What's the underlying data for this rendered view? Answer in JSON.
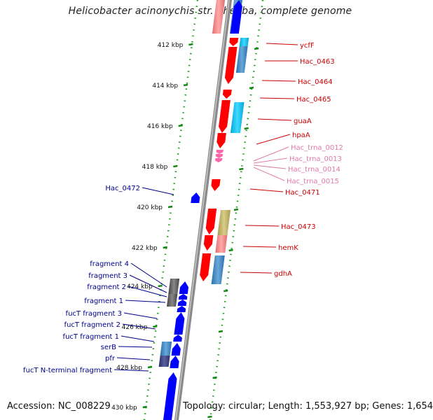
{
  "title": "Helicobacter acinonychis str. Sheeba, complete genome",
  "footer": {
    "accession": "Accession: NC_008229",
    "summary": "Topology: circular; Length: 1,553,927 bp; Genes: 1,654"
  },
  "colors": {
    "forward_label": "#cc0000",
    "reverse_label": "#00008b",
    "trna_label": "#e07aa8",
    "cds_forward": "#ff0000",
    "cds_reverse": "#0000ff",
    "trna": "#ff66aa",
    "fragment": "#555555",
    "backbone": "#888888",
    "scale_tick": "#118811"
  },
  "scale_ticks": [
    "412 kbp",
    "414 kbp",
    "416 kbp",
    "418 kbp",
    "420 kbp",
    "422 kbp",
    "424 kbp",
    "426 kbp",
    "428 kbp",
    "430 kbp"
  ],
  "forward_labels": [
    "ycfF",
    "Hac_0463",
    "Hac_0464",
    "Hac_0465",
    "guaA",
    "hpaA",
    "Hac_trna_0012",
    "Hac_trna_0013",
    "Hac_trna_0014",
    "Hac_trna_0015",
    "Hac_0471",
    "Hac_0473",
    "hemK",
    "gdhA"
  ],
  "reverse_labels": [
    "Hac_0472",
    "fragment 4",
    "fragment 3",
    "fragment 2",
    "fragment 1",
    "fucT fragment 3",
    "fucT fragment 2",
    "fucT fragment 1",
    "serB",
    "pfr",
    "fucT N-terminal fragment"
  ]
}
